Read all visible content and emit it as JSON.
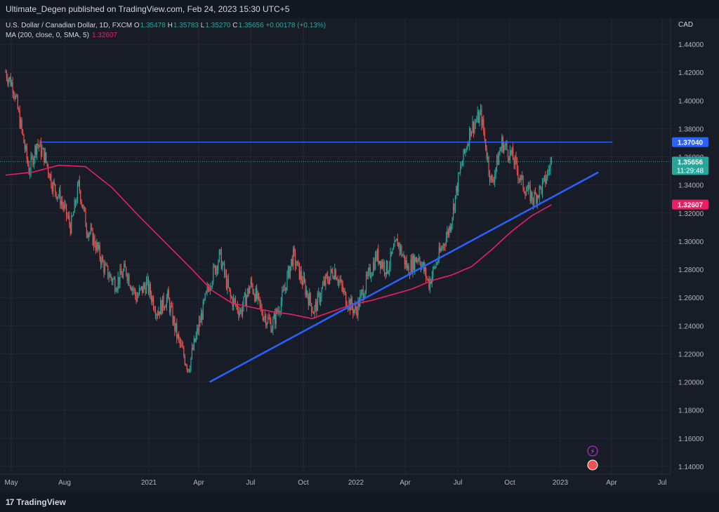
{
  "header": {
    "publish_line": "Ultimate_Degen published on TradingView.com, Feb 24, 2023 15:30 UTC+5"
  },
  "legend": {
    "symbol": "U.S. Dollar / Canadian Dollar, 1D, FXCM",
    "o_label": "O",
    "o": "1.35478",
    "h_label": "H",
    "h": "1.35783",
    "l_label": "L",
    "l": "1.35270",
    "c_label": "C",
    "c": "1.35656",
    "change": "+0.00178 (+0.13%)",
    "ma_label": "MA (200, close, 0, SMA, 5)",
    "ma_value": "1.32607"
  },
  "currency": "CAD",
  "footer": {
    "brand": "TradingView",
    "logo": "17"
  },
  "colors": {
    "background": "#131722",
    "pane": "#181c27",
    "up": "#26a69a",
    "down": "#ef5350",
    "ma": "#e91e63",
    "trendline": "#2962ff",
    "grid": "#232734"
  },
  "chart_data": {
    "type": "candlestick",
    "y_ticks": [
      "1.44000",
      "1.42000",
      "1.40000",
      "1.38000",
      "1.36000",
      "1.34000",
      "1.32000",
      "1.30000",
      "1.28000",
      "1.26000",
      "1.24000",
      "1.22000",
      "1.20000",
      "1.18000",
      "1.16000",
      "1.14000"
    ],
    "x_ticks": [
      "May",
      "Aug",
      "2021",
      "Apr",
      "Jul",
      "Oct",
      "2022",
      "Apr",
      "Jul",
      "Oct",
      "2023",
      "Apr",
      "Jul"
    ],
    "ylim": [
      1.136,
      1.454
    ],
    "price_labels": [
      {
        "value": 1.3704,
        "text": "1.37040",
        "color": "#2962ff"
      },
      {
        "value": 1.35656,
        "text": "1.35656",
        "sub": "11:29:48",
        "color": "#26a69a"
      },
      {
        "value": 1.32607,
        "text": "1.32607",
        "color": "#e91e63"
      }
    ],
    "close_path": [
      [
        0,
        1.42
      ],
      [
        0.03,
        1.41
      ],
      [
        0.06,
        1.38
      ],
      [
        0.09,
        1.35
      ],
      [
        0.12,
        1.37
      ],
      [
        0.15,
        1.36
      ],
      [
        0.18,
        1.34
      ],
      [
        0.21,
        1.33
      ],
      [
        0.25,
        1.31
      ],
      [
        0.28,
        1.34
      ],
      [
        0.31,
        1.31
      ],
      [
        0.34,
        1.3
      ],
      [
        0.38,
        1.28
      ],
      [
        0.42,
        1.27
      ],
      [
        0.46,
        1.28
      ],
      [
        0.5,
        1.26
      ],
      [
        0.54,
        1.27
      ],
      [
        0.58,
        1.25
      ],
      [
        0.62,
        1.26
      ],
      [
        0.66,
        1.23
      ],
      [
        0.7,
        1.21
      ],
      [
        0.74,
        1.24
      ],
      [
        0.78,
        1.27
      ],
      [
        0.82,
        1.29
      ],
      [
        0.86,
        1.26
      ],
      [
        0.9,
        1.25
      ],
      [
        0.94,
        1.27
      ],
      [
        0.98,
        1.25
      ],
      [
        1.02,
        1.24
      ],
      [
        1.06,
        1.26
      ],
      [
        1.1,
        1.29
      ],
      [
        1.14,
        1.27
      ],
      [
        1.18,
        1.25
      ],
      [
        1.22,
        1.27
      ],
      [
        1.26,
        1.28
      ],
      [
        1.3,
        1.26
      ],
      [
        1.34,
        1.25
      ],
      [
        1.38,
        1.27
      ],
      [
        1.42,
        1.29
      ],
      [
        1.46,
        1.28
      ],
      [
        1.5,
        1.3
      ],
      [
        1.54,
        1.28
      ],
      [
        1.58,
        1.29
      ],
      [
        1.62,
        1.27
      ],
      [
        1.66,
        1.29
      ],
      [
        1.7,
        1.31
      ],
      [
        1.74,
        1.35
      ],
      [
        1.78,
        1.38
      ],
      [
        1.82,
        1.39
      ],
      [
        1.86,
        1.34
      ],
      [
        1.9,
        1.37
      ],
      [
        1.94,
        1.36
      ],
      [
        1.98,
        1.34
      ],
      [
        2.02,
        1.33
      ],
      [
        2.06,
        1.34
      ],
      [
        2.09,
        1.357
      ]
    ],
    "ma_path": [
      [
        0,
        1.347
      ],
      [
        0.2,
        1.349
      ],
      [
        0.4,
        1.354
      ],
      [
        0.6,
        1.353
      ],
      [
        0.8,
        1.338
      ],
      [
        1.0,
        1.318
      ],
      [
        1.2,
        1.299
      ],
      [
        1.4,
        1.28
      ],
      [
        1.55,
        1.265
      ],
      [
        1.7,
        1.256
      ],
      [
        1.85,
        1.253
      ],
      [
        2.0,
        1.25
      ],
      [
        2.15,
        1.248
      ],
      [
        2.3,
        1.245
      ],
      [
        2.45,
        1.25
      ],
      [
        2.6,
        1.255
      ],
      [
        2.75,
        1.258
      ],
      [
        2.9,
        1.262
      ],
      [
        3.05,
        1.266
      ],
      [
        3.2,
        1.272
      ],
      [
        3.35,
        1.276
      ],
      [
        3.5,
        1.282
      ],
      [
        3.65,
        1.294
      ],
      [
        3.8,
        1.307
      ],
      [
        3.95,
        1.318
      ],
      [
        4.1,
        1.326
      ]
    ],
    "trendlines": [
      {
        "from": [
          0.315,
          1.2
        ],
        "to": [
          0.915,
          1.349
        ]
      },
      {
        "from": [
          0.055,
          1.3704
        ],
        "to": [
          0.937,
          1.3704
        ]
      }
    ]
  }
}
